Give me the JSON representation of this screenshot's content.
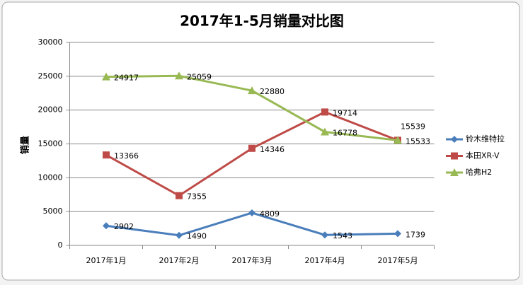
{
  "chart_data": {
    "type": "line",
    "title": "2017年1-5月销量对比图",
    "y_label": "销量",
    "categories": [
      "2017年1月",
      "2017年2月",
      "2017年3月",
      "2017年4月",
      "2017年5月"
    ],
    "series": [
      {
        "name": "铃木维特拉",
        "color": "#4a7ebb",
        "marker": "diamond",
        "values": [
          2902,
          1490,
          4809,
          1543,
          1739
        ]
      },
      {
        "name": "本田XR-V",
        "color": "#be4b48",
        "marker": "square",
        "values": [
          13366,
          7355,
          14346,
          19714,
          15539
        ]
      },
      {
        "name": "哈弗H2",
        "color": "#98b954",
        "marker": "triangle",
        "values": [
          24917,
          25059,
          22880,
          16778,
          15533
        ]
      }
    ],
    "ylim": [
      0,
      30000
    ],
    "yticks": [
      0,
      5000,
      10000,
      15000,
      20000,
      25000,
      30000
    ],
    "grid": true,
    "legend": "right"
  }
}
